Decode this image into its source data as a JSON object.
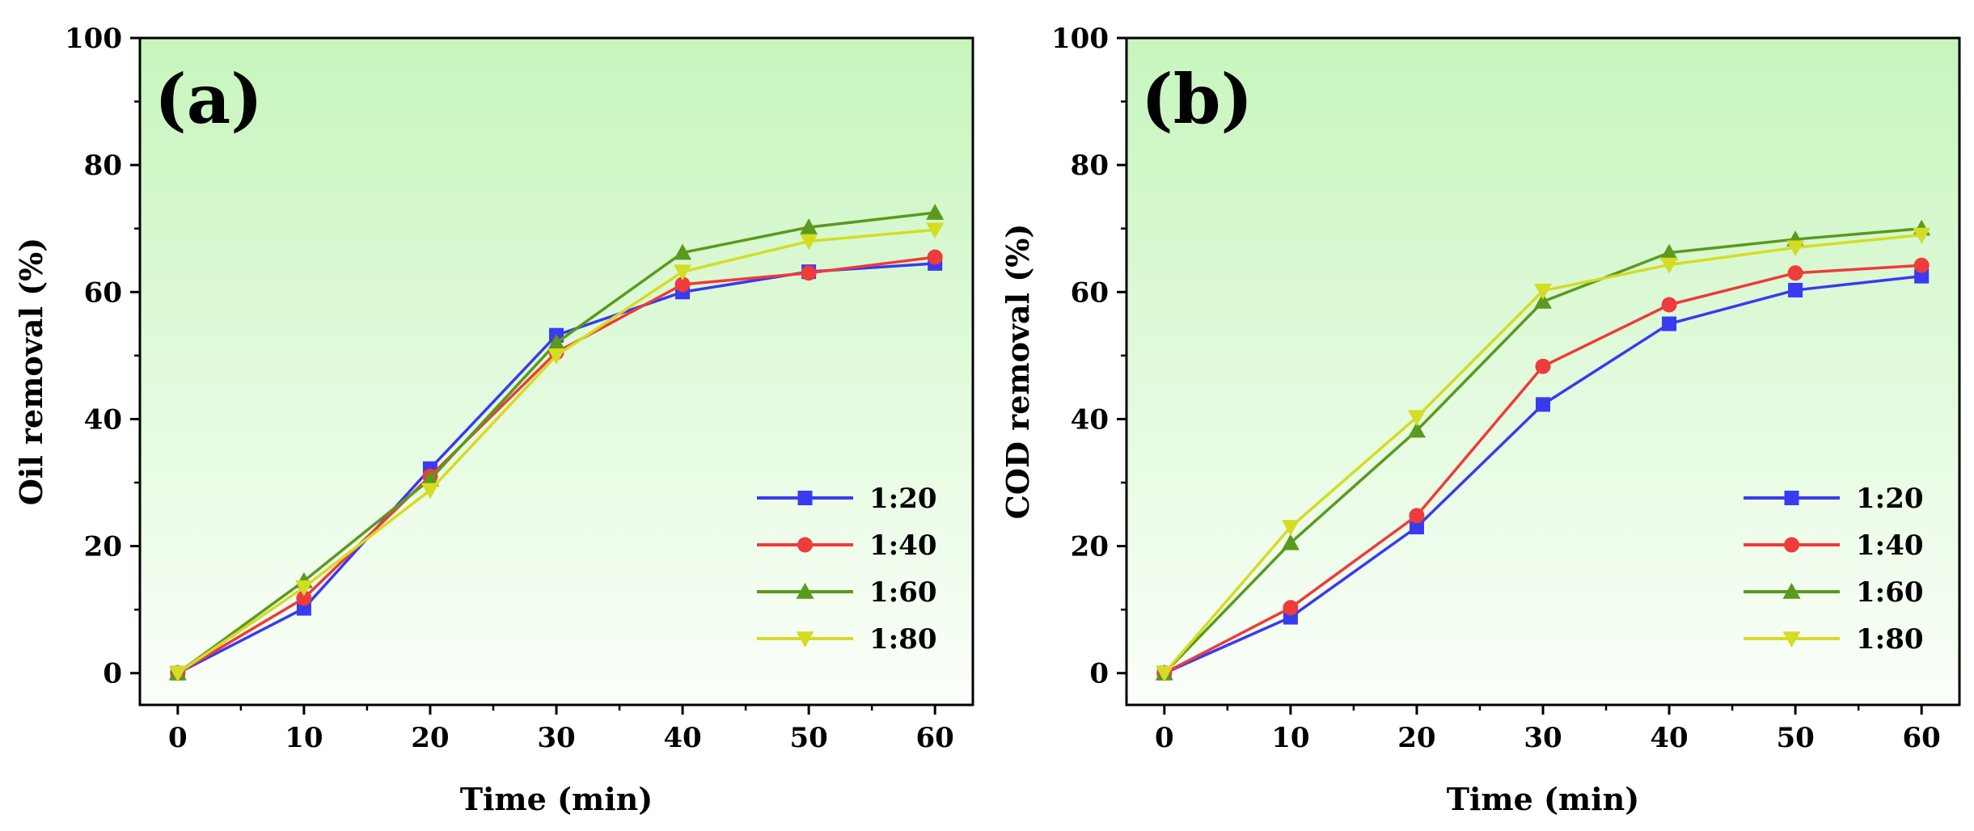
{
  "chart_data": [
    {
      "type": "line",
      "panel_label": "(a)",
      "xlabel": "Time (min)",
      "ylabel": "Oil removal (%)",
      "xlim": [
        -3,
        63
      ],
      "ylim": [
        -5,
        100
      ],
      "x": [
        0,
        10,
        20,
        30,
        40,
        50,
        60
      ],
      "xticks": [
        "0",
        "10",
        "20",
        "30",
        "40",
        "50",
        "60"
      ],
      "yticks": [
        "0",
        "20",
        "40",
        "60",
        "80",
        "100"
      ],
      "legend_position": "bottom-right",
      "series": [
        {
          "name": "1:20",
          "color": "#3a3af0",
          "marker": "square",
          "values": [
            0,
            10.2,
            32.2,
            53.2,
            60.0,
            63.2,
            64.5
          ]
        },
        {
          "name": "1:40",
          "color": "#ee3b3b",
          "marker": "circle",
          "values": [
            0,
            11.8,
            31.0,
            50.5,
            61.2,
            63.0,
            65.5
          ]
        },
        {
          "name": "1:60",
          "color": "#5a9a1e",
          "marker": "triangle-up",
          "values": [
            0,
            14.5,
            30.5,
            52.0,
            66.2,
            70.2,
            72.5
          ]
        },
        {
          "name": "1:80",
          "color": "#d4dc24",
          "marker": "triangle-down",
          "values": [
            0,
            13.5,
            28.8,
            50.0,
            63.2,
            68.0,
            69.8
          ]
        }
      ]
    },
    {
      "type": "line",
      "panel_label": "(b)",
      "xlabel": "Time (min)",
      "ylabel": "COD removal (%)",
      "xlim": [
        -3,
        63
      ],
      "ylim": [
        -5,
        100
      ],
      "x": [
        0,
        10,
        20,
        30,
        40,
        50,
        60
      ],
      "xticks": [
        "0",
        "10",
        "20",
        "30",
        "40",
        "50",
        "60"
      ],
      "yticks": [
        "0",
        "20",
        "40",
        "60",
        "80",
        "100"
      ],
      "legend_position": "bottom-right",
      "series": [
        {
          "name": "1:20",
          "color": "#3a3af0",
          "marker": "square",
          "values": [
            0,
            8.8,
            23.0,
            42.3,
            55.0,
            60.3,
            62.5
          ]
        },
        {
          "name": "1:40",
          "color": "#ee3b3b",
          "marker": "circle",
          "values": [
            0,
            10.3,
            24.8,
            48.3,
            58.0,
            63.0,
            64.2
          ]
        },
        {
          "name": "1:60",
          "color": "#5a9a1e",
          "marker": "triangle-up",
          "values": [
            0,
            20.5,
            38.2,
            58.5,
            66.2,
            68.3,
            70.0
          ]
        },
        {
          "name": "1:80",
          "color": "#d4dc24",
          "marker": "triangle-down",
          "values": [
            0,
            23.0,
            40.3,
            60.2,
            64.3,
            67.0,
            69.0
          ]
        }
      ]
    }
  ]
}
